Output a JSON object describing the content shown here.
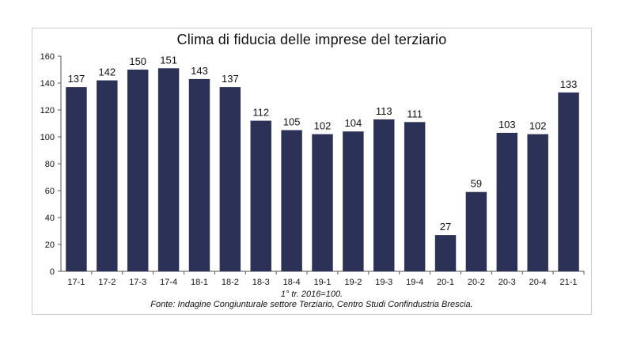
{
  "chart_data": {
    "type": "bar",
    "title": "Clima di fiducia delle imprese del terziario",
    "categories": [
      "17-1",
      "17-2",
      "17-3",
      "17-4",
      "18-1",
      "18-2",
      "18-3",
      "18-4",
      "19-1",
      "19-2",
      "19-3",
      "19-4",
      "20-1",
      "20-2",
      "20-3",
      "20-4",
      "21-1"
    ],
    "values": [
      137,
      142,
      150,
      151,
      143,
      137,
      112,
      105,
      102,
      104,
      113,
      111,
      27,
      59,
      103,
      102,
      133
    ],
    "ylim": [
      0,
      160
    ],
    "yticks": [
      0,
      20,
      40,
      60,
      80,
      100,
      120,
      140,
      160
    ],
    "bar_color": "#2b3157",
    "grid": false,
    "data_labels": true
  },
  "notes": {
    "base": "1° tr. 2016=100.",
    "source": "Fonte: Indagine Congiunturale settore Terziario, Centro Studi Confindustria Brescia."
  }
}
